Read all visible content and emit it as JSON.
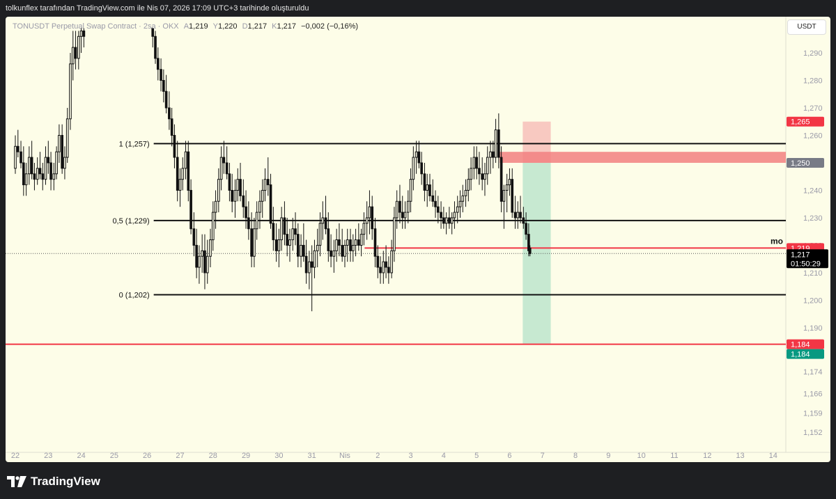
{
  "header": {
    "caption": "tolkunflex tarafından TradingView.com ile Nis 07, 2026 17:09 UTC+3 tarihinde oluşturuldu"
  },
  "symbol": {
    "name": "TONUSDT Perpetual Swap Contract · 2sa · OKX",
    "open_label": "A",
    "open": "1,219",
    "high_label": "Y",
    "high": "1,220",
    "low_label": "D",
    "low": "1,217",
    "close_label": "K",
    "close": "1,217",
    "change": "−0,002 (−0,16%)"
  },
  "currency_button": "USDT",
  "branding": {
    "logo_text": "TradingView"
  },
  "colors": {
    "background": "#fdfde8",
    "candle": "#111111",
    "red_line": "#f23645",
    "target_zone": "#9bd9bd",
    "stop_zone": "#f5a6a6",
    "last_price_tag": "#000000"
  },
  "chart_data": {
    "type": "candlestick",
    "timeframe": "2sa",
    "ylim": [
      1.148,
      1.299
    ],
    "y_ticks": [
      "1,290",
      "1,280",
      "1,270",
      "1,260",
      "1,250",
      "1,240",
      "1,230",
      "1,220",
      "1,210",
      "1,200",
      "1,190",
      "1,180",
      "1,174",
      "1,166",
      "1,159",
      "1,152"
    ],
    "y_tick_values": [
      1.29,
      1.28,
      1.27,
      1.26,
      1.25,
      1.24,
      1.23,
      1.22,
      1.21,
      1.2,
      1.19,
      1.18,
      1.174,
      1.166,
      1.159,
      1.152
    ],
    "x_ticks": [
      "22",
      "23",
      "24",
      "25",
      "26",
      "27",
      "28",
      "29",
      "30",
      "31",
      "Nis",
      "2",
      "3",
      "4",
      "5",
      "6",
      "7",
      "8",
      "9",
      "10",
      "11",
      "12",
      "13",
      "14"
    ],
    "fib_levels": [
      {
        "label": "1 (1,257)",
        "value": 1.257
      },
      {
        "label": "0,5 (1,229)",
        "value": 1.229
      },
      {
        "label": "0 (1,202)",
        "value": 1.202
      }
    ],
    "horizontal_lines": [
      {
        "value": 1.219,
        "label": "mo",
        "price_tag": "1,219"
      },
      {
        "value": 1.184,
        "price_tag": "1,184"
      }
    ],
    "position": {
      "type": "short",
      "entry": 1.25,
      "stop": 1.265,
      "target": 1.184,
      "entry_tag": "1,250",
      "stop_tag": "1,265",
      "target_tag": "1,184"
    },
    "resistance_zone": [
      1.25,
      1.254
    ],
    "last_price": {
      "value": 1.217,
      "tag": "1,217",
      "countdown": "01:50:29"
    },
    "x_domain": [
      0,
      23.3
    ],
    "candles": [
      [
        0.0,
        1.248,
        1.26,
        1.246,
        1.256
      ],
      [
        0.08,
        1.256,
        1.262,
        1.252,
        1.254
      ],
      [
        0.17,
        1.254,
        1.258,
        1.248,
        1.25
      ],
      [
        0.25,
        1.25,
        1.256,
        1.238,
        1.242
      ],
      [
        0.33,
        1.242,
        1.25,
        1.238,
        1.246
      ],
      [
        0.42,
        1.246,
        1.256,
        1.242,
        1.252
      ],
      [
        0.5,
        1.252,
        1.258,
        1.244,
        1.246
      ],
      [
        0.58,
        1.246,
        1.25,
        1.24,
        1.244
      ],
      [
        0.67,
        1.244,
        1.252,
        1.242,
        1.248
      ],
      [
        0.75,
        1.248,
        1.254,
        1.244,
        1.246
      ],
      [
        0.83,
        1.246,
        1.25,
        1.24,
        1.244
      ],
      [
        0.92,
        1.244,
        1.256,
        1.242,
        1.252
      ],
      [
        1.0,
        1.252,
        1.258,
        1.246,
        1.25
      ],
      [
        1.08,
        1.25,
        1.254,
        1.24,
        1.244
      ],
      [
        1.17,
        1.244,
        1.25,
        1.24,
        1.246
      ],
      [
        1.25,
        1.246,
        1.256,
        1.244,
        1.254
      ],
      [
        1.33,
        1.254,
        1.264,
        1.25,
        1.26
      ],
      [
        1.42,
        1.26,
        1.264,
        1.246,
        1.248
      ],
      [
        1.5,
        1.248,
        1.256,
        1.244,
        1.252
      ],
      [
        1.58,
        1.252,
        1.27,
        1.25,
        1.266
      ],
      [
        1.67,
        1.266,
        1.29,
        1.262,
        1.286
      ],
      [
        1.75,
        1.286,
        1.298,
        1.28,
        1.292
      ],
      [
        1.83,
        1.292,
        1.298,
        1.284,
        1.288
      ],
      [
        1.92,
        1.288,
        1.298,
        1.284,
        1.296
      ],
      [
        2.0,
        1.296,
        1.299,
        1.29,
        1.298
      ],
      [
        2.08,
        1.298,
        1.299,
        1.292,
        1.296
      ],
      [
        4.17,
        1.299,
        1.299,
        1.292,
        1.296
      ],
      [
        4.25,
        1.296,
        1.298,
        1.286,
        1.288
      ],
      [
        4.33,
        1.288,
        1.292,
        1.28,
        1.284
      ],
      [
        4.42,
        1.284,
        1.288,
        1.276,
        1.28
      ],
      [
        4.5,
        1.28,
        1.284,
        1.272,
        1.276
      ],
      [
        4.58,
        1.276,
        1.282,
        1.268,
        1.27
      ],
      [
        4.67,
        1.27,
        1.276,
        1.262,
        1.266
      ],
      [
        4.75,
        1.266,
        1.27,
        1.256,
        1.26
      ],
      [
        4.83,
        1.26,
        1.264,
        1.248,
        1.252
      ],
      [
        4.92,
        1.252,
        1.258,
        1.236,
        1.24
      ],
      [
        5.0,
        1.24,
        1.248,
        1.234,
        1.244
      ],
      [
        5.08,
        1.244,
        1.252,
        1.24,
        1.248
      ],
      [
        5.17,
        1.248,
        1.258,
        1.244,
        1.254
      ],
      [
        5.25,
        1.254,
        1.258,
        1.236,
        1.24
      ],
      [
        5.33,
        1.24,
        1.244,
        1.224,
        1.226
      ],
      [
        5.42,
        1.226,
        1.232,
        1.216,
        1.22
      ],
      [
        5.5,
        1.22,
        1.226,
        1.208,
        1.212
      ],
      [
        5.58,
        1.212,
        1.22,
        1.206,
        1.216
      ],
      [
        5.67,
        1.216,
        1.224,
        1.21,
        1.218
      ],
      [
        5.75,
        1.218,
        1.224,
        1.204,
        1.21
      ],
      [
        5.83,
        1.21,
        1.222,
        1.206,
        1.216
      ],
      [
        5.92,
        1.216,
        1.226,
        1.212,
        1.222
      ],
      [
        6.0,
        1.222,
        1.236,
        1.218,
        1.232
      ],
      [
        6.08,
        1.232,
        1.24,
        1.226,
        1.236
      ],
      [
        6.17,
        1.236,
        1.248,
        1.232,
        1.244
      ],
      [
        6.25,
        1.244,
        1.256,
        1.24,
        1.252
      ],
      [
        6.33,
        1.252,
        1.258,
        1.246,
        1.25
      ],
      [
        6.42,
        1.25,
        1.256,
        1.244,
        1.246
      ],
      [
        6.5,
        1.246,
        1.25,
        1.236,
        1.24
      ],
      [
        6.58,
        1.24,
        1.246,
        1.232,
        1.236
      ],
      [
        6.67,
        1.236,
        1.244,
        1.23,
        1.24
      ],
      [
        6.75,
        1.24,
        1.248,
        1.236,
        1.244
      ],
      [
        6.83,
        1.244,
        1.25,
        1.236,
        1.238
      ],
      [
        6.92,
        1.238,
        1.244,
        1.23,
        1.234
      ],
      [
        7.0,
        1.234,
        1.24,
        1.226,
        1.23
      ],
      [
        7.08,
        1.23,
        1.236,
        1.222,
        1.226
      ],
      [
        7.17,
        1.226,
        1.232,
        1.212,
        1.216
      ],
      [
        7.25,
        1.216,
        1.23,
        1.212,
        1.226
      ],
      [
        7.33,
        1.226,
        1.236,
        1.222,
        1.232
      ],
      [
        7.42,
        1.232,
        1.24,
        1.226,
        1.236
      ],
      [
        7.5,
        1.236,
        1.244,
        1.23,
        1.24
      ],
      [
        7.58,
        1.24,
        1.248,
        1.236,
        1.244
      ],
      [
        7.67,
        1.244,
        1.252,
        1.238,
        1.242
      ],
      [
        7.75,
        1.242,
        1.246,
        1.226,
        1.228
      ],
      [
        7.83,
        1.228,
        1.234,
        1.218,
        1.222
      ],
      [
        7.92,
        1.222,
        1.228,
        1.214,
        1.218
      ],
      [
        8.0,
        1.218,
        1.226,
        1.212,
        1.222
      ],
      [
        8.08,
        1.222,
        1.234,
        1.218,
        1.23
      ],
      [
        8.17,
        1.23,
        1.236,
        1.22,
        1.224
      ],
      [
        8.25,
        1.224,
        1.23,
        1.216,
        1.22
      ],
      [
        8.33,
        1.22,
        1.226,
        1.214,
        1.222
      ],
      [
        8.42,
        1.222,
        1.23,
        1.218,
        1.226
      ],
      [
        8.5,
        1.226,
        1.232,
        1.22,
        1.224
      ],
      [
        8.58,
        1.224,
        1.228,
        1.212,
        1.216
      ],
      [
        8.67,
        1.216,
        1.224,
        1.212,
        1.22
      ],
      [
        8.75,
        1.22,
        1.228,
        1.214,
        1.216
      ],
      [
        8.83,
        1.216,
        1.222,
        1.206,
        1.21
      ],
      [
        8.92,
        1.21,
        1.218,
        1.204,
        1.214
      ],
      [
        9.0,
        1.214,
        1.22,
        1.196,
        1.212
      ],
      [
        9.08,
        1.212,
        1.222,
        1.208,
        1.218
      ],
      [
        9.17,
        1.218,
        1.226,
        1.212,
        1.22
      ],
      [
        9.25,
        1.22,
        1.232,
        1.216,
        1.228
      ],
      [
        9.33,
        1.228,
        1.236,
        1.222,
        1.23
      ],
      [
        9.42,
        1.23,
        1.238,
        1.224,
        1.226
      ],
      [
        9.5,
        1.226,
        1.232,
        1.214,
        1.218
      ],
      [
        9.58,
        1.218,
        1.224,
        1.212,
        1.216
      ],
      [
        9.67,
        1.216,
        1.222,
        1.21,
        1.218
      ],
      [
        9.75,
        1.218,
        1.226,
        1.214,
        1.222
      ],
      [
        9.83,
        1.222,
        1.228,
        1.216,
        1.22
      ],
      [
        9.92,
        1.22,
        1.226,
        1.214,
        1.216
      ],
      [
        10.0,
        1.216,
        1.222,
        1.212,
        1.22
      ],
      [
        10.08,
        1.22,
        1.226,
        1.214,
        1.222
      ],
      [
        10.17,
        1.222,
        1.226,
        1.214,
        1.218
      ],
      [
        10.25,
        1.218,
        1.224,
        1.214,
        1.22
      ],
      [
        10.33,
        1.22,
        1.226,
        1.216,
        1.222
      ],
      [
        10.42,
        1.222,
        1.228,
        1.218,
        1.22
      ],
      [
        10.5,
        1.22,
        1.226,
        1.216,
        1.224
      ],
      [
        10.58,
        1.224,
        1.232,
        1.22,
        1.228
      ],
      [
        10.67,
        1.228,
        1.236,
        1.222,
        1.23
      ],
      [
        10.75,
        1.23,
        1.24,
        1.224,
        1.234
      ],
      [
        10.83,
        1.234,
        1.238,
        1.222,
        1.226
      ],
      [
        10.92,
        1.226,
        1.23,
        1.212,
        1.216
      ],
      [
        11.0,
        1.216,
        1.22,
        1.208,
        1.212
      ],
      [
        11.08,
        1.212,
        1.216,
        1.206,
        1.21
      ],
      [
        11.17,
        1.21,
        1.218,
        1.206,
        1.214
      ],
      [
        11.25,
        1.214,
        1.22,
        1.208,
        1.212
      ],
      [
        11.33,
        1.212,
        1.216,
        1.206,
        1.21
      ],
      [
        11.42,
        1.21,
        1.222,
        1.208,
        1.218
      ],
      [
        11.5,
        1.218,
        1.234,
        1.214,
        1.23
      ],
      [
        11.58,
        1.23,
        1.24,
        1.226,
        1.236
      ],
      [
        11.67,
        1.236,
        1.242,
        1.228,
        1.232
      ],
      [
        11.75,
        1.232,
        1.238,
        1.226,
        1.23
      ],
      [
        11.83,
        1.23,
        1.236,
        1.226,
        1.232
      ],
      [
        11.92,
        1.232,
        1.24,
        1.228,
        1.236
      ],
      [
        12.0,
        1.236,
        1.248,
        1.232,
        1.244
      ],
      [
        12.08,
        1.244,
        1.256,
        1.24,
        1.252
      ],
      [
        12.17,
        1.252,
        1.258,
        1.246,
        1.254
      ],
      [
        12.25,
        1.254,
        1.258,
        1.248,
        1.25
      ],
      [
        12.33,
        1.25,
        1.254,
        1.242,
        1.246
      ],
      [
        12.42,
        1.246,
        1.25,
        1.236,
        1.24
      ],
      [
        12.5,
        1.24,
        1.246,
        1.234,
        1.242
      ],
      [
        12.58,
        1.242,
        1.246,
        1.236,
        1.238
      ],
      [
        12.67,
        1.238,
        1.244,
        1.234,
        1.236
      ],
      [
        12.75,
        1.236,
        1.24,
        1.23,
        1.234
      ],
      [
        12.83,
        1.234,
        1.238,
        1.228,
        1.232
      ],
      [
        12.92,
        1.232,
        1.236,
        1.226,
        1.23
      ],
      [
        13.0,
        1.23,
        1.234,
        1.226,
        1.228
      ],
      [
        13.08,
        1.228,
        1.232,
        1.224,
        1.23
      ],
      [
        13.17,
        1.23,
        1.234,
        1.226,
        1.228
      ],
      [
        13.25,
        1.228,
        1.232,
        1.224,
        1.23
      ],
      [
        13.33,
        1.23,
        1.236,
        1.226,
        1.232
      ],
      [
        13.42,
        1.232,
        1.238,
        1.228,
        1.234
      ],
      [
        13.5,
        1.234,
        1.24,
        1.23,
        1.236
      ],
      [
        13.58,
        1.236,
        1.242,
        1.232,
        1.238
      ],
      [
        13.67,
        1.238,
        1.244,
        1.234,
        1.24
      ],
      [
        13.75,
        1.24,
        1.248,
        1.236,
        1.244
      ],
      [
        13.83,
        1.244,
        1.252,
        1.24,
        1.248
      ],
      [
        13.92,
        1.248,
        1.256,
        1.244,
        1.252
      ],
      [
        14.0,
        1.252,
        1.256,
        1.244,
        1.248
      ],
      [
        14.08,
        1.248,
        1.254,
        1.242,
        1.246
      ],
      [
        14.17,
        1.246,
        1.252,
        1.24,
        1.244
      ],
      [
        14.25,
        1.244,
        1.25,
        1.238,
        1.246
      ],
      [
        14.33,
        1.246,
        1.256,
        1.242,
        1.252
      ],
      [
        14.42,
        1.252,
        1.258,
        1.246,
        1.254
      ],
      [
        14.5,
        1.254,
        1.258,
        1.248,
        1.252
      ],
      [
        14.58,
        1.252,
        1.266,
        1.25,
        1.262
      ],
      [
        14.67,
        1.262,
        1.268,
        1.248,
        1.252
      ],
      [
        14.75,
        1.252,
        1.256,
        1.232,
        1.236
      ],
      [
        14.83,
        1.236,
        1.242,
        1.226,
        1.24
      ],
      [
        14.92,
        1.24,
        1.246,
        1.232,
        1.242
      ],
      [
        15.0,
        1.242,
        1.248,
        1.238,
        1.244
      ],
      [
        15.08,
        1.244,
        1.248,
        1.23,
        1.232
      ],
      [
        15.17,
        1.232,
        1.238,
        1.226,
        1.23
      ],
      [
        15.25,
        1.23,
        1.236,
        1.226,
        1.232
      ],
      [
        15.33,
        1.232,
        1.238,
        1.228,
        1.23
      ],
      [
        15.42,
        1.23,
        1.234,
        1.226,
        1.228
      ],
      [
        15.5,
        1.228,
        1.232,
        1.222,
        1.224
      ],
      [
        15.58,
        1.224,
        1.228,
        1.216,
        1.218
      ],
      [
        15.62,
        1.219,
        1.22,
        1.216,
        1.217
      ]
    ]
  }
}
